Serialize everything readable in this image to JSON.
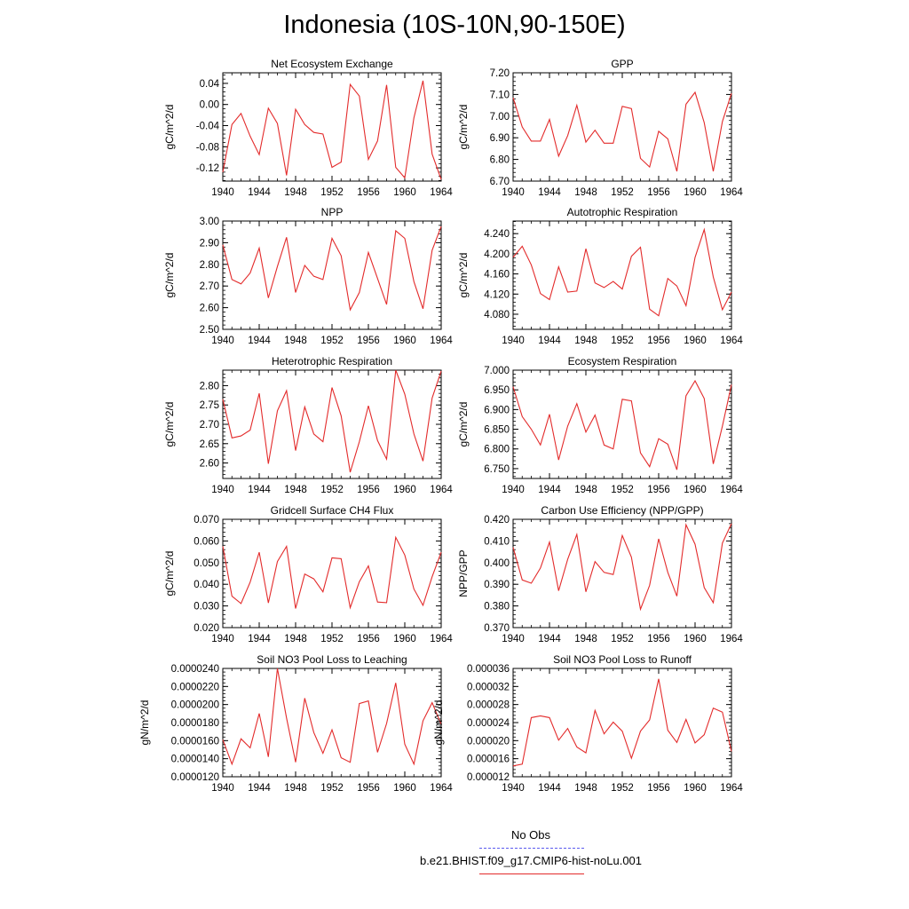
{
  "page_title": "Indonesia (10S-10N,90-150E)",
  "legend": {
    "items": [
      {
        "label": "No Obs",
        "color": "#5a5aee",
        "style": "dashed"
      },
      {
        "label": "b.e21.BHIST.f09_g17.CMIP6-hist-noLu.001",
        "color": "#e32b2b",
        "style": "solid"
      }
    ]
  },
  "chart_data": [
    {
      "type": "line",
      "title": "Net Ecosystem Exchange",
      "ylabel": "gC/m^2/d",
      "ylim": [
        -0.145,
        0.06
      ],
      "yticks": [
        "0.04",
        "0.00",
        "-0.04",
        "-0.08",
        "-0.12"
      ],
      "ytick_values": [
        0.04,
        0.0,
        -0.04,
        -0.08,
        -0.12
      ],
      "xlim": [
        1940,
        1964
      ],
      "xticks": [
        "1940",
        "1944",
        "1948",
        "1952",
        "1956",
        "1960",
        "1964"
      ],
      "series": [
        {
          "color": "#e32b2b",
          "x": [
            1940,
            1941,
            1942,
            1943,
            1944,
            1945,
            1946,
            1947,
            1948,
            1949,
            1950,
            1951,
            1952,
            1953,
            1954,
            1955,
            1956,
            1957,
            1958,
            1959,
            1960,
            1961,
            1962,
            1963,
            1964
          ],
          "values": [
            -0.128,
            -0.038,
            -0.017,
            -0.06,
            -0.095,
            -0.007,
            -0.036,
            -0.134,
            -0.009,
            -0.038,
            -0.053,
            -0.056,
            -0.119,
            -0.109,
            0.038,
            0.016,
            -0.104,
            -0.069,
            0.037,
            -0.119,
            -0.139,
            -0.025,
            0.045,
            -0.094,
            -0.142
          ]
        }
      ]
    },
    {
      "type": "line",
      "title": "GPP",
      "ylabel": "gC/m^2/d",
      "ylim": [
        6.7,
        7.2
      ],
      "yticks": [
        "7.20",
        "7.10",
        "7.00",
        "6.90",
        "6.80",
        "6.70"
      ],
      "ytick_values": [
        7.2,
        7.1,
        7.0,
        6.9,
        6.8,
        6.7
      ],
      "xlim": [
        1940,
        1964
      ],
      "xticks": [
        "1940",
        "1944",
        "1948",
        "1952",
        "1956",
        "1960",
        "1964"
      ],
      "series": [
        {
          "color": "#e32b2b",
          "x": [
            1940,
            1941,
            1942,
            1943,
            1944,
            1945,
            1946,
            1947,
            1948,
            1949,
            1950,
            1951,
            1952,
            1953,
            1954,
            1955,
            1956,
            1957,
            1958,
            1959,
            1960,
            1961,
            1962,
            1963,
            1964
          ],
          "values": [
            7.085,
            6.95,
            6.885,
            6.885,
            6.985,
            6.815,
            6.91,
            7.05,
            6.88,
            6.935,
            6.875,
            6.875,
            7.045,
            7.035,
            6.805,
            6.765,
            6.93,
            6.895,
            6.745,
            7.055,
            7.11,
            6.97,
            6.745,
            6.975,
            7.105
          ]
        }
      ]
    },
    {
      "type": "line",
      "title": "NPP",
      "ylabel": "gC/m^2/d",
      "ylim": [
        2.5,
        3.0
      ],
      "yticks": [
        "3.00",
        "2.90",
        "2.80",
        "2.70",
        "2.60",
        "2.50"
      ],
      "ytick_values": [
        3.0,
        2.9,
        2.8,
        2.7,
        2.6,
        2.5
      ],
      "xlim": [
        1940,
        1964
      ],
      "xticks": [
        "1940",
        "1944",
        "1948",
        "1952",
        "1956",
        "1960",
        "1964"
      ],
      "series": [
        {
          "color": "#e32b2b",
          "x": [
            1940,
            1941,
            1942,
            1943,
            1944,
            1945,
            1946,
            1947,
            1948,
            1949,
            1950,
            1951,
            1952,
            1953,
            1954,
            1955,
            1956,
            1957,
            1958,
            1959,
            1960,
            1961,
            1962,
            1963,
            1964
          ],
          "values": [
            2.89,
            2.73,
            2.71,
            2.76,
            2.875,
            2.645,
            2.79,
            2.925,
            2.67,
            2.795,
            2.745,
            2.73,
            2.92,
            2.84,
            2.59,
            2.67,
            2.855,
            2.735,
            2.615,
            2.955,
            2.92,
            2.72,
            2.595,
            2.865,
            2.975
          ]
        }
      ]
    },
    {
      "type": "line",
      "title": "Autotrophic Respiration",
      "ylabel": "gC/m^2/d",
      "ylim": [
        4.05,
        4.265
      ],
      "yticks": [
        "4.240",
        "4.200",
        "4.160",
        "4.120",
        "4.080"
      ],
      "ytick_values": [
        4.24,
        4.2,
        4.16,
        4.12,
        4.08
      ],
      "xlim": [
        1940,
        1964
      ],
      "xticks": [
        "1940",
        "1944",
        "1948",
        "1952",
        "1956",
        "1960",
        "1964"
      ],
      "series": [
        {
          "color": "#e32b2b",
          "x": [
            1940,
            1941,
            1942,
            1943,
            1944,
            1945,
            1946,
            1947,
            1948,
            1949,
            1950,
            1951,
            1952,
            1953,
            1954,
            1955,
            1956,
            1957,
            1958,
            1959,
            1960,
            1961,
            1962,
            1963,
            1964
          ],
          "values": [
            4.193,
            4.215,
            4.178,
            4.121,
            4.109,
            4.174,
            4.124,
            4.126,
            4.21,
            4.142,
            4.133,
            4.145,
            4.13,
            4.195,
            4.213,
            4.09,
            4.077,
            4.151,
            4.136,
            4.097,
            4.193,
            4.248,
            4.154,
            4.089,
            4.124
          ]
        }
      ]
    },
    {
      "type": "line",
      "title": "Heterotrophic Respiration",
      "ylabel": "gC/m^2/d",
      "ylim": [
        2.56,
        2.84
      ],
      "yticks": [
        "2.80",
        "2.75",
        "2.70",
        "2.65",
        "2.60"
      ],
      "ytick_values": [
        2.8,
        2.75,
        2.7,
        2.65,
        2.6
      ],
      "xlim": [
        1940,
        1964
      ],
      "xticks": [
        "1940",
        "1944",
        "1948",
        "1952",
        "1956",
        "1960",
        "1964"
      ],
      "series": [
        {
          "color": "#e32b2b",
          "x": [
            1940,
            1941,
            1942,
            1943,
            1944,
            1945,
            1946,
            1947,
            1948,
            1949,
            1950,
            1951,
            1952,
            1953,
            1954,
            1955,
            1956,
            1957,
            1958,
            1959,
            1960,
            1961,
            1962,
            1963,
            1964
          ],
          "values": [
            2.765,
            2.665,
            2.67,
            2.685,
            2.78,
            2.598,
            2.735,
            2.787,
            2.632,
            2.745,
            2.675,
            2.655,
            2.795,
            2.722,
            2.576,
            2.655,
            2.748,
            2.658,
            2.61,
            2.84,
            2.778,
            2.675,
            2.605,
            2.768,
            2.838
          ]
        }
      ]
    },
    {
      "type": "line",
      "title": "Ecosystem Respiration",
      "ylabel": "gC/m^2/d",
      "ylim": [
        6.725,
        7.0
      ],
      "yticks": [
        "7.000",
        "6.950",
        "6.900",
        "6.850",
        "6.800",
        "6.750"
      ],
      "ytick_values": [
        7.0,
        6.95,
        6.9,
        6.85,
        6.8,
        6.75
      ],
      "xlim": [
        1940,
        1964
      ],
      "xticks": [
        "1940",
        "1944",
        "1948",
        "1952",
        "1956",
        "1960",
        "1964"
      ],
      "series": [
        {
          "color": "#e32b2b",
          "x": [
            1940,
            1941,
            1942,
            1943,
            1944,
            1945,
            1946,
            1947,
            1948,
            1949,
            1950,
            1951,
            1952,
            1953,
            1954,
            1955,
            1956,
            1957,
            1958,
            1959,
            1960,
            1961,
            1962,
            1963,
            1964
          ],
          "values": [
            6.958,
            6.882,
            6.85,
            6.81,
            6.888,
            6.772,
            6.858,
            6.915,
            6.843,
            6.886,
            6.81,
            6.8,
            6.926,
            6.922,
            6.79,
            6.755,
            6.826,
            6.812,
            6.747,
            6.935,
            6.973,
            6.928,
            6.762,
            6.858,
            6.963
          ]
        }
      ]
    },
    {
      "type": "line",
      "title": "Gridcell Surface CH4 Flux",
      "ylabel": "gC/m^2/d",
      "ylim": [
        0.02,
        0.07
      ],
      "yticks": [
        "0.070",
        "0.060",
        "0.050",
        "0.040",
        "0.030",
        "0.020"
      ],
      "ytick_values": [
        0.07,
        0.06,
        0.05,
        0.04,
        0.03,
        0.02
      ],
      "xlim": [
        1940,
        1964
      ],
      "xticks": [
        "1940",
        "1944",
        "1948",
        "1952",
        "1956",
        "1960",
        "1964"
      ],
      "series": [
        {
          "color": "#e32b2b",
          "x": [
            1940,
            1941,
            1942,
            1943,
            1944,
            1945,
            1946,
            1947,
            1948,
            1949,
            1950,
            1951,
            1952,
            1953,
            1954,
            1955,
            1956,
            1957,
            1958,
            1959,
            1960,
            1961,
            1962,
            1963,
            1964
          ],
          "values": [
            0.0575,
            0.0345,
            0.0311,
            0.041,
            0.0548,
            0.0314,
            0.0505,
            0.0575,
            0.0288,
            0.0447,
            0.0425,
            0.0365,
            0.0522,
            0.0518,
            0.0292,
            0.0412,
            0.0485,
            0.0318,
            0.0315,
            0.0617,
            0.0535,
            0.0378,
            0.0303,
            0.0435,
            0.0548
          ]
        }
      ]
    },
    {
      "type": "line",
      "title": "Carbon Use Efficiency (NPP/GPP)",
      "ylabel": "NPP/GPP",
      "ylim": [
        0.37,
        0.42
      ],
      "yticks": [
        "0.420",
        "0.410",
        "0.400",
        "0.390",
        "0.380",
        "0.370"
      ],
      "ytick_values": [
        0.42,
        0.41,
        0.4,
        0.39,
        0.38,
        0.37
      ],
      "xlim": [
        1940,
        1964
      ],
      "xticks": [
        "1940",
        "1944",
        "1948",
        "1952",
        "1956",
        "1960",
        "1964"
      ],
      "series": [
        {
          "color": "#e32b2b",
          "x": [
            1940,
            1941,
            1942,
            1943,
            1944,
            1945,
            1946,
            1947,
            1948,
            1949,
            1950,
            1951,
            1952,
            1953,
            1954,
            1955,
            1956,
            1957,
            1958,
            1959,
            1960,
            1961,
            1962,
            1963,
            1964
          ],
          "values": [
            0.407,
            0.392,
            0.3905,
            0.3975,
            0.4095,
            0.387,
            0.4015,
            0.413,
            0.3865,
            0.4005,
            0.3955,
            0.3945,
            0.4125,
            0.4025,
            0.3785,
            0.3895,
            0.411,
            0.3955,
            0.3845,
            0.4175,
            0.4085,
            0.3885,
            0.3815,
            0.409,
            0.418
          ]
        }
      ]
    },
    {
      "type": "line",
      "title": "Soil NO3 Pool Loss to Leaching",
      "ylabel": "gN/m^2/d",
      "ylim": [
        1.2e-05,
        2.4e-05
      ],
      "yticks": [
        "0.0000240",
        "0.0000220",
        "0.0000200",
        "0.0000180",
        "0.0000160",
        "0.0000140",
        "0.0000120"
      ],
      "ytick_values": [
        2.4e-05,
        2.2e-05,
        2e-05,
        1.8e-05,
        1.6e-05,
        1.4e-05,
        1.2e-05
      ],
      "xlim": [
        1940,
        1964
      ],
      "xticks": [
        "1940",
        "1944",
        "1948",
        "1952",
        "1956",
        "1960",
        "1964"
      ],
      "series": [
        {
          "color": "#e32b2b",
          "x": [
            1940,
            1941,
            1942,
            1943,
            1944,
            1945,
            1946,
            1947,
            1948,
            1949,
            1950,
            1951,
            1952,
            1953,
            1954,
            1955,
            1956,
            1957,
            1958,
            1959,
            1960,
            1961,
            1962,
            1963,
            1964
          ],
          "values": [
            1.61e-05,
            1.34e-05,
            1.62e-05,
            1.52e-05,
            1.9e-05,
            1.42e-05,
            2.4e-05,
            1.85e-05,
            1.36e-05,
            2.07e-05,
            1.69e-05,
            1.46e-05,
            1.72e-05,
            1.41e-05,
            1.36e-05,
            2.01e-05,
            2.04e-05,
            1.47e-05,
            1.79e-05,
            2.24e-05,
            1.56e-05,
            1.34e-05,
            1.82e-05,
            2.02e-05,
            1.78e-05
          ]
        }
      ]
    },
    {
      "type": "line",
      "title": "Soil NO3 Pool Loss to Runoff",
      "ylabel": "gN/m^2/d",
      "ylim": [
        1.2e-05,
        3.6e-05
      ],
      "yticks": [
        "0.000036",
        "0.000032",
        "0.000028",
        "0.000024",
        "0.000020",
        "0.000016",
        "0.000012"
      ],
      "ytick_values": [
        3.6e-05,
        3.2e-05,
        2.8e-05,
        2.4e-05,
        2e-05,
        1.6e-05,
        1.2e-05
      ],
      "xlim": [
        1940,
        1964
      ],
      "xticks": [
        "1940",
        "1944",
        "1948",
        "1952",
        "1956",
        "1960",
        "1964"
      ],
      "series": [
        {
          "color": "#e32b2b",
          "x": [
            1940,
            1941,
            1942,
            1943,
            1944,
            1945,
            1946,
            1947,
            1948,
            1949,
            1950,
            1951,
            1952,
            1953,
            1954,
            1955,
            1956,
            1957,
            1958,
            1959,
            1960,
            1961,
            1962,
            1963,
            1964
          ],
          "values": [
            1.44e-05,
            1.48e-05,
            2.51e-05,
            2.55e-05,
            2.51e-05,
            2.01e-05,
            2.27e-05,
            1.86e-05,
            1.73e-05,
            2.67e-05,
            2.15e-05,
            2.41e-05,
            2.21e-05,
            1.61e-05,
            2.21e-05,
            2.46e-05,
            3.37e-05,
            2.23e-05,
            1.96e-05,
            2.47e-05,
            1.95e-05,
            2.13e-05,
            2.72e-05,
            2.63e-05,
            1.76e-05
          ]
        }
      ]
    }
  ]
}
